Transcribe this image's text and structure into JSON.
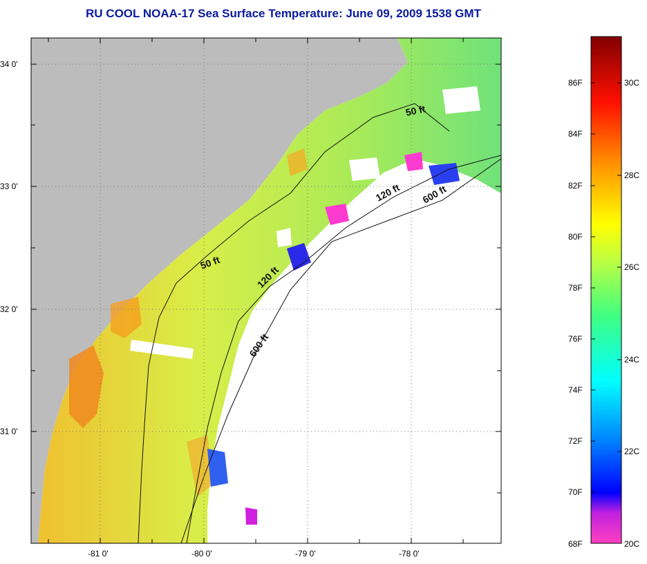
{
  "title": "RU COOL  NOAA-17  Sea Surface Temperature:  June 09, 2009 1538 GMT",
  "axes": {
    "x_ticks": [
      "-81 0'",
      "-80 0'",
      "-79 0'",
      "-78 0'"
    ],
    "y_ticks": [
      "34 0'",
      "33 0'",
      "32 0'",
      "31 0'"
    ]
  },
  "contours": [
    "50 ft",
    "50 ft",
    "120 ft",
    "120 ft",
    "600 ft",
    "600 ft"
  ],
  "colorbar": {
    "f_labels": [
      "86F",
      "84F",
      "82F",
      "80F",
      "78F",
      "76F",
      "74F",
      "72F",
      "70F",
      "68F"
    ],
    "c_labels": [
      "30C",
      "28C",
      "26C",
      "24C",
      "22C",
      "20C"
    ],
    "range_c": [
      20,
      31.5
    ]
  },
  "colors": {
    "land": "#bcbcbc",
    "title": "#0a1a9e",
    "sst_warm": "#ff8a1e",
    "sst_mid": "#c8f050",
    "sst_cool": "#40e070"
  }
}
